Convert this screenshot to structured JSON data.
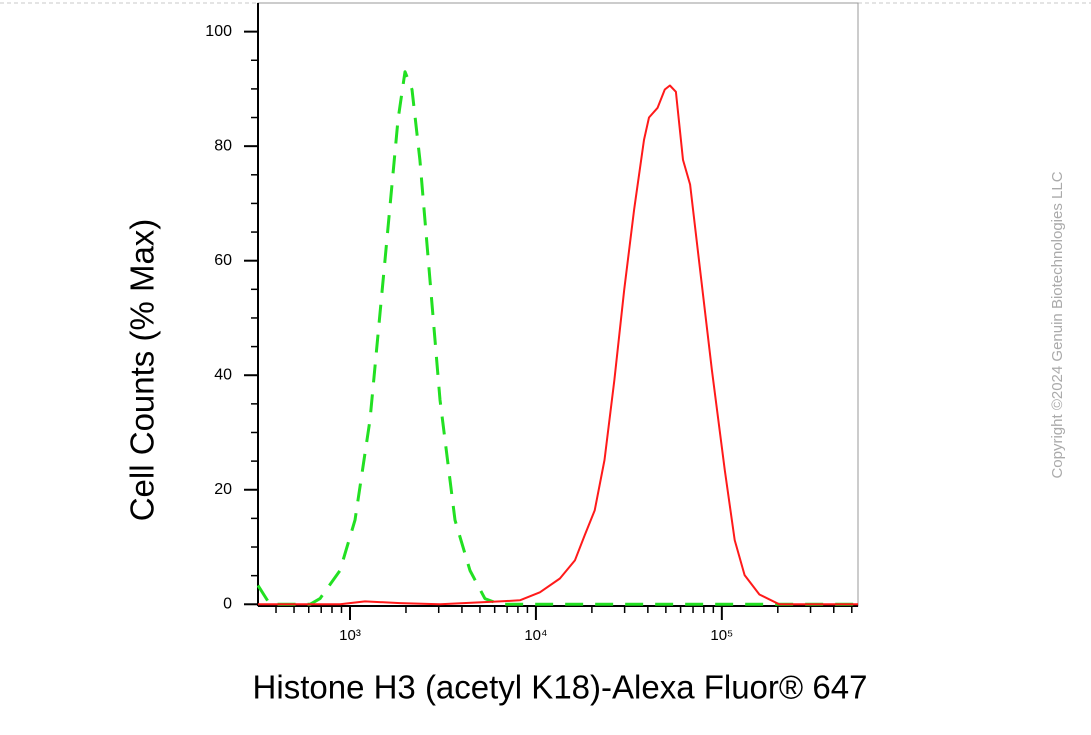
{
  "chart_data": {
    "type": "line",
    "y_label": "Cell Counts (% Max)",
    "x_label": "Histone H3 (acetyl K18)-Alexa Fluor® 647",
    "watermark": "Copyright ©2024 Genuin Biotechnologies LLC",
    "x_log": true,
    "xlim": [
      320,
      540000
    ],
    "xticks": [
      {
        "value": 1000,
        "label": "10³"
      },
      {
        "value": 10000,
        "label": "10⁴"
      },
      {
        "value": 100000,
        "label": "10⁵"
      }
    ],
    "ylim": [
      -0.3,
      105
    ],
    "yticks": [
      0,
      20,
      40,
      60,
      80,
      100
    ],
    "series": [
      {
        "color": "#22e022",
        "line_style": "dashed",
        "x": [
          320,
          371,
          610,
          690,
          883,
          1064,
          1281,
          1542,
          1812,
          1977,
          2155,
          2377,
          2692,
          3048,
          3671,
          4418,
          5319,
          6404,
          540000
        ],
        "values": [
          3.3,
          0,
          0,
          1.0,
          5.9,
          14.7,
          32.2,
          60.1,
          84.6,
          93.0,
          89.9,
          77.6,
          56.6,
          35.7,
          14.7,
          5.9,
          1.0,
          0,
          0
        ]
      },
      {
        "color": "#ff1a1a",
        "line_style": "solid",
        "x": [
          320,
          883,
          1204,
          1857,
          3048,
          6404,
          8204,
          10510,
          13460,
          16220,
          18320,
          20700,
          23390,
          26420,
          29860,
          33740,
          38120,
          40560,
          45140,
          49370,
          52560,
          56640,
          61810,
          67480,
          76360,
          88410,
          103800,
          117300,
          132600,
          159300,
          203700,
          540000
        ],
        "values": [
          0,
          0,
          0.5,
          0.2,
          0,
          0.5,
          0.7,
          2.1,
          4.5,
          7.7,
          12.1,
          16.4,
          25.2,
          39.2,
          54.9,
          68.9,
          81.1,
          85.0,
          86.7,
          89.9,
          90.6,
          89.5,
          77.6,
          73.3,
          58.4,
          40.9,
          23.4,
          11.2,
          5.1,
          1.7,
          0,
          0
        ]
      }
    ]
  }
}
